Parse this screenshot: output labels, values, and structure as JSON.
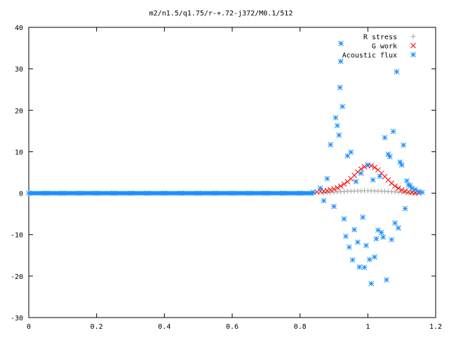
{
  "chart_data": {
    "type": "scatter",
    "title": "m2/n1.5/q1.75/r-+.72-j372/M0.1/512",
    "xlabel": "",
    "ylabel": "",
    "xlim": [
      0,
      1.2
    ],
    "ylim": [
      -30,
      40
    ],
    "xticks": [
      "0",
      "0.2",
      "0.4",
      "0.6",
      "0.8",
      "1",
      "1.2"
    ],
    "yticks": [
      "-30",
      "-20",
      "-10",
      "0",
      "10",
      "20",
      "30",
      "40"
    ],
    "grid": false,
    "legend_position": "top-right",
    "series": [
      {
        "name": "R stress",
        "marker": "plus",
        "color": "#a0a0a0",
        "points": [
          [
            0.87,
            0.1
          ],
          [
            0.88,
            0.15
          ],
          [
            0.89,
            0.2
          ],
          [
            0.9,
            0.25
          ],
          [
            0.91,
            0.3
          ],
          [
            0.92,
            0.35
          ],
          [
            0.93,
            0.4
          ],
          [
            0.94,
            0.45
          ],
          [
            0.95,
            0.5
          ],
          [
            0.96,
            0.5
          ],
          [
            0.97,
            0.55
          ],
          [
            0.98,
            0.55
          ],
          [
            0.99,
            0.6
          ],
          [
            1.0,
            0.6
          ],
          [
            1.01,
            0.55
          ],
          [
            1.02,
            0.55
          ],
          [
            1.03,
            0.5
          ],
          [
            1.04,
            0.5
          ],
          [
            1.05,
            0.45
          ],
          [
            1.06,
            0.4
          ],
          [
            1.07,
            0.35
          ],
          [
            1.08,
            0.3
          ],
          [
            1.09,
            0.25
          ],
          [
            1.1,
            0.2
          ],
          [
            1.11,
            0.15
          ],
          [
            1.12,
            0.1
          ],
          [
            1.13,
            0.05
          ],
          [
            1.14,
            0.05
          ]
        ]
      },
      {
        "name": "G work",
        "marker": "cross",
        "color": "#ff0000",
        "points": [
          [
            0.85,
            0.3
          ],
          [
            0.86,
            0.4
          ],
          [
            0.87,
            0.5
          ],
          [
            0.88,
            0.6
          ],
          [
            0.89,
            0.8
          ],
          [
            0.9,
            1.0
          ],
          [
            0.91,
            1.3
          ],
          [
            0.92,
            1.7
          ],
          [
            0.93,
            2.2
          ],
          [
            0.94,
            2.8
          ],
          [
            0.95,
            3.5
          ],
          [
            0.96,
            4.3
          ],
          [
            0.97,
            5.1
          ],
          [
            0.98,
            5.8
          ],
          [
            0.99,
            6.4
          ],
          [
            1.0,
            6.7
          ],
          [
            1.01,
            6.6
          ],
          [
            1.02,
            6.2
          ],
          [
            1.03,
            5.6
          ],
          [
            1.04,
            4.8
          ],
          [
            1.05,
            4.0
          ],
          [
            1.06,
            3.2
          ],
          [
            1.07,
            2.4
          ],
          [
            1.08,
            1.7
          ],
          [
            1.09,
            1.2
          ],
          [
            1.1,
            0.8
          ],
          [
            1.11,
            0.5
          ],
          [
            1.12,
            0.3
          ],
          [
            1.13,
            0.2
          ],
          [
            1.14,
            0.1
          ],
          [
            1.15,
            0.05
          ]
        ]
      },
      {
        "name": "Acoustic flux",
        "marker": "star",
        "color": "#1e90ff",
        "points": [
          [
            0.0,
            0.0
          ],
          [
            0.05,
            0.0
          ],
          [
            0.1,
            0.0
          ],
          [
            0.15,
            0.0
          ],
          [
            0.2,
            0.0
          ],
          [
            0.25,
            0.0
          ],
          [
            0.3,
            0.0
          ],
          [
            0.35,
            0.0
          ],
          [
            0.4,
            0.0
          ],
          [
            0.45,
            0.0
          ],
          [
            0.5,
            0.0
          ],
          [
            0.55,
            0.0
          ],
          [
            0.6,
            0.0
          ],
          [
            0.65,
            0.0
          ],
          [
            0.7,
            0.0
          ],
          [
            0.75,
            0.0
          ],
          [
            0.8,
            0.0
          ],
          [
            0.84,
            0.2
          ],
          [
            0.86,
            1.2
          ],
          [
            0.87,
            -1.8
          ],
          [
            0.88,
            3.5
          ],
          [
            0.89,
            11.7
          ],
          [
            0.9,
            -3.2
          ],
          [
            0.905,
            18.2
          ],
          [
            0.91,
            16.3
          ],
          [
            0.915,
            14.0
          ],
          [
            0.918,
            25.5
          ],
          [
            0.92,
            31.8
          ],
          [
            0.925,
            20.9
          ],
          [
            0.93,
            -6.2
          ],
          [
            0.935,
            -10.4
          ],
          [
            0.94,
            9.0
          ],
          [
            0.945,
            -13.0
          ],
          [
            0.95,
            9.9
          ],
          [
            0.955,
            -16.1
          ],
          [
            0.96,
            -8.8
          ],
          [
            0.965,
            2.8
          ],
          [
            0.97,
            -11.8
          ],
          [
            0.975,
            -17.8
          ],
          [
            0.98,
            4.8
          ],
          [
            0.985,
            -5.8
          ],
          [
            0.99,
            -17.9
          ],
          [
            0.995,
            -12.6
          ],
          [
            1.0,
            6.8
          ],
          [
            1.005,
            -16.0
          ],
          [
            1.01,
            -21.8
          ],
          [
            1.015,
            3.2
          ],
          [
            1.02,
            -15.4
          ],
          [
            1.025,
            -11.0
          ],
          [
            1.03,
            -8.9
          ],
          [
            1.035,
            4.1
          ],
          [
            1.04,
            -9.5
          ],
          [
            1.045,
            -10.6
          ],
          [
            1.05,
            13.4
          ],
          [
            1.055,
            -20.9
          ],
          [
            1.06,
            9.4
          ],
          [
            1.065,
            8.8
          ],
          [
            1.07,
            -11.2
          ],
          [
            1.075,
            14.9
          ],
          [
            1.08,
            -7.2
          ],
          [
            1.085,
            29.3
          ],
          [
            1.09,
            -8.4
          ],
          [
            1.095,
            7.5
          ],
          [
            1.1,
            6.8
          ],
          [
            1.105,
            11.6
          ],
          [
            1.11,
            -3.7
          ],
          [
            1.115,
            3.0
          ],
          [
            1.12,
            2.0
          ],
          [
            1.125,
            1.8
          ],
          [
            1.13,
            1.2
          ],
          [
            1.14,
            0.9
          ],
          [
            1.15,
            0.4
          ],
          [
            1.16,
            0.2
          ]
        ]
      }
    ]
  }
}
